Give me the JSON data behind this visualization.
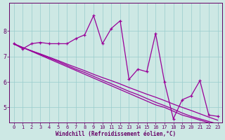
{
  "title": "",
  "xlabel": "Windchill (Refroidissement éolien,°C)",
  "background_color": "#cde8e4",
  "line_color": "#990099",
  "grid_color": "#99cccc",
  "axis_color": "#660066",
  "ylim": [
    4.4,
    9.1
  ],
  "xlim": [
    -0.5,
    23.5
  ],
  "yticks": [
    5,
    6,
    7,
    8
  ],
  "xticks": [
    0,
    1,
    2,
    3,
    4,
    5,
    6,
    7,
    8,
    9,
    10,
    11,
    12,
    13,
    14,
    15,
    16,
    17,
    18,
    19,
    20,
    21,
    22,
    23
  ],
  "y_main": [
    7.5,
    7.3,
    7.5,
    7.55,
    7.5,
    7.5,
    7.5,
    7.7,
    7.85,
    8.6,
    7.5,
    8.1,
    8.4,
    6.1,
    6.5,
    6.4,
    7.9,
    6.0,
    4.55,
    5.3,
    5.45,
    6.05,
    4.7,
    4.65
  ],
  "trend_lines": [
    [
      7.5,
      7.35,
      7.2,
      7.05,
      6.9,
      6.75,
      6.6,
      6.45,
      6.3,
      6.15,
      6.0,
      5.85,
      5.7,
      5.55,
      5.4,
      5.25,
      5.1,
      5.0,
      4.85,
      4.7,
      4.6,
      4.5,
      4.4,
      4.3
    ],
    [
      7.5,
      7.35,
      7.22,
      7.08,
      6.94,
      6.8,
      6.65,
      6.5,
      6.37,
      6.22,
      6.07,
      5.93,
      5.78,
      5.63,
      5.5,
      5.35,
      5.2,
      5.07,
      4.93,
      4.78,
      4.65,
      4.55,
      4.45,
      4.35
    ],
    [
      7.48,
      7.35,
      7.22,
      7.1,
      6.97,
      6.84,
      6.7,
      6.57,
      6.44,
      6.3,
      6.17,
      6.05,
      5.92,
      5.78,
      5.65,
      5.52,
      5.4,
      5.27,
      5.13,
      5.0,
      4.88,
      4.75,
      4.62,
      4.5
    ]
  ],
  "xlabel_fontsize": 5.5,
  "tick_fontsize": 5.0,
  "linewidth": 0.9,
  "marker_size": 3.5
}
